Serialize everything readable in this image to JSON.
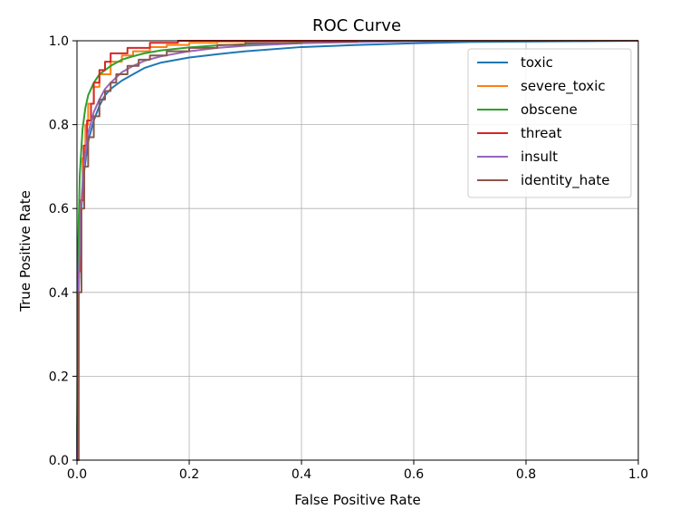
{
  "chart_data": {
    "type": "line",
    "title": "ROC Curve",
    "xlabel": "False Positive Rate",
    "ylabel": "True Positive Rate",
    "xlim": [
      0.0,
      1.0
    ],
    "ylim": [
      0.0,
      1.0
    ],
    "xticks": [
      "0.0",
      "0.2",
      "0.4",
      "0.6",
      "0.8",
      "1.0"
    ],
    "yticks": [
      "0.0",
      "0.2",
      "0.4",
      "0.6",
      "0.8",
      "1.0"
    ],
    "grid": true,
    "legend_position": "top-right",
    "series": [
      {
        "name": "toxic",
        "color": "#1f77b4",
        "step": false,
        "x": [
          0,
          0.003,
          0.007,
          0.012,
          0.02,
          0.03,
          0.04,
          0.05,
          0.06,
          0.07,
          0.08,
          0.1,
          0.12,
          0.15,
          0.2,
          0.25,
          0.3,
          0.4,
          0.5,
          0.6,
          0.7,
          0.8,
          0.9,
          1.0
        ],
        "y": [
          0,
          0.4,
          0.58,
          0.68,
          0.76,
          0.81,
          0.845,
          0.87,
          0.885,
          0.895,
          0.905,
          0.92,
          0.935,
          0.948,
          0.96,
          0.968,
          0.975,
          0.985,
          0.99,
          0.994,
          0.997,
          0.998,
          0.999,
          1.0
        ]
      },
      {
        "name": "severe_toxic",
        "color": "#ff7f0e",
        "step": true,
        "x": [
          0,
          0.002,
          0.005,
          0.01,
          0.015,
          0.02,
          0.03,
          0.04,
          0.06,
          0.08,
          0.1,
          0.13,
          0.16,
          0.2,
          0.25,
          0.3,
          0.5,
          1.0
        ],
        "y": [
          0,
          0.45,
          0.62,
          0.72,
          0.8,
          0.85,
          0.89,
          0.92,
          0.95,
          0.965,
          0.975,
          0.985,
          0.99,
          0.995,
          0.998,
          1.0,
          1.0,
          1.0
        ]
      },
      {
        "name": "obscene",
        "color": "#2ca02c",
        "step": false,
        "x": [
          0,
          0.002,
          0.005,
          0.01,
          0.015,
          0.02,
          0.03,
          0.04,
          0.05,
          0.06,
          0.08,
          0.1,
          0.12,
          0.15,
          0.2,
          0.25,
          0.3,
          0.4,
          0.5,
          0.6,
          0.8,
          1.0
        ],
        "y": [
          0,
          0.5,
          0.68,
          0.79,
          0.84,
          0.87,
          0.9,
          0.92,
          0.93,
          0.94,
          0.955,
          0.963,
          0.97,
          0.977,
          0.984,
          0.989,
          0.992,
          0.996,
          0.998,
          0.999,
          1.0,
          1.0
        ]
      },
      {
        "name": "threat",
        "color": "#d62728",
        "step": true,
        "x": [
          0,
          0.003,
          0.007,
          0.012,
          0.018,
          0.025,
          0.03,
          0.04,
          0.05,
          0.06,
          0.09,
          0.13,
          0.18,
          0.25,
          1.0
        ],
        "y": [
          0,
          0.45,
          0.62,
          0.75,
          0.81,
          0.85,
          0.9,
          0.93,
          0.95,
          0.97,
          0.983,
          0.995,
          1.0,
          1.0,
          1.0
        ]
      },
      {
        "name": "insult",
        "color": "#9467bd",
        "step": false,
        "x": [
          0,
          0.003,
          0.007,
          0.012,
          0.02,
          0.03,
          0.04,
          0.05,
          0.06,
          0.08,
          0.1,
          0.12,
          0.15,
          0.2,
          0.25,
          0.3,
          0.4,
          0.5,
          0.6,
          0.8,
          1.0
        ],
        "y": [
          0,
          0.42,
          0.6,
          0.7,
          0.78,
          0.83,
          0.86,
          0.885,
          0.9,
          0.925,
          0.94,
          0.952,
          0.963,
          0.975,
          0.983,
          0.988,
          0.994,
          0.997,
          0.999,
          1.0,
          1.0
        ]
      },
      {
        "name": "identity_hate",
        "color": "#8c564b",
        "step": true,
        "x": [
          0,
          0.003,
          0.008,
          0.013,
          0.02,
          0.03,
          0.04,
          0.05,
          0.06,
          0.07,
          0.09,
          0.11,
          0.13,
          0.16,
          0.2,
          0.25,
          0.3,
          0.4,
          0.5,
          1.0
        ],
        "y": [
          0,
          0.4,
          0.6,
          0.7,
          0.77,
          0.82,
          0.86,
          0.88,
          0.9,
          0.92,
          0.94,
          0.955,
          0.965,
          0.975,
          0.983,
          0.99,
          0.995,
          0.998,
          1.0,
          1.0
        ]
      }
    ]
  }
}
